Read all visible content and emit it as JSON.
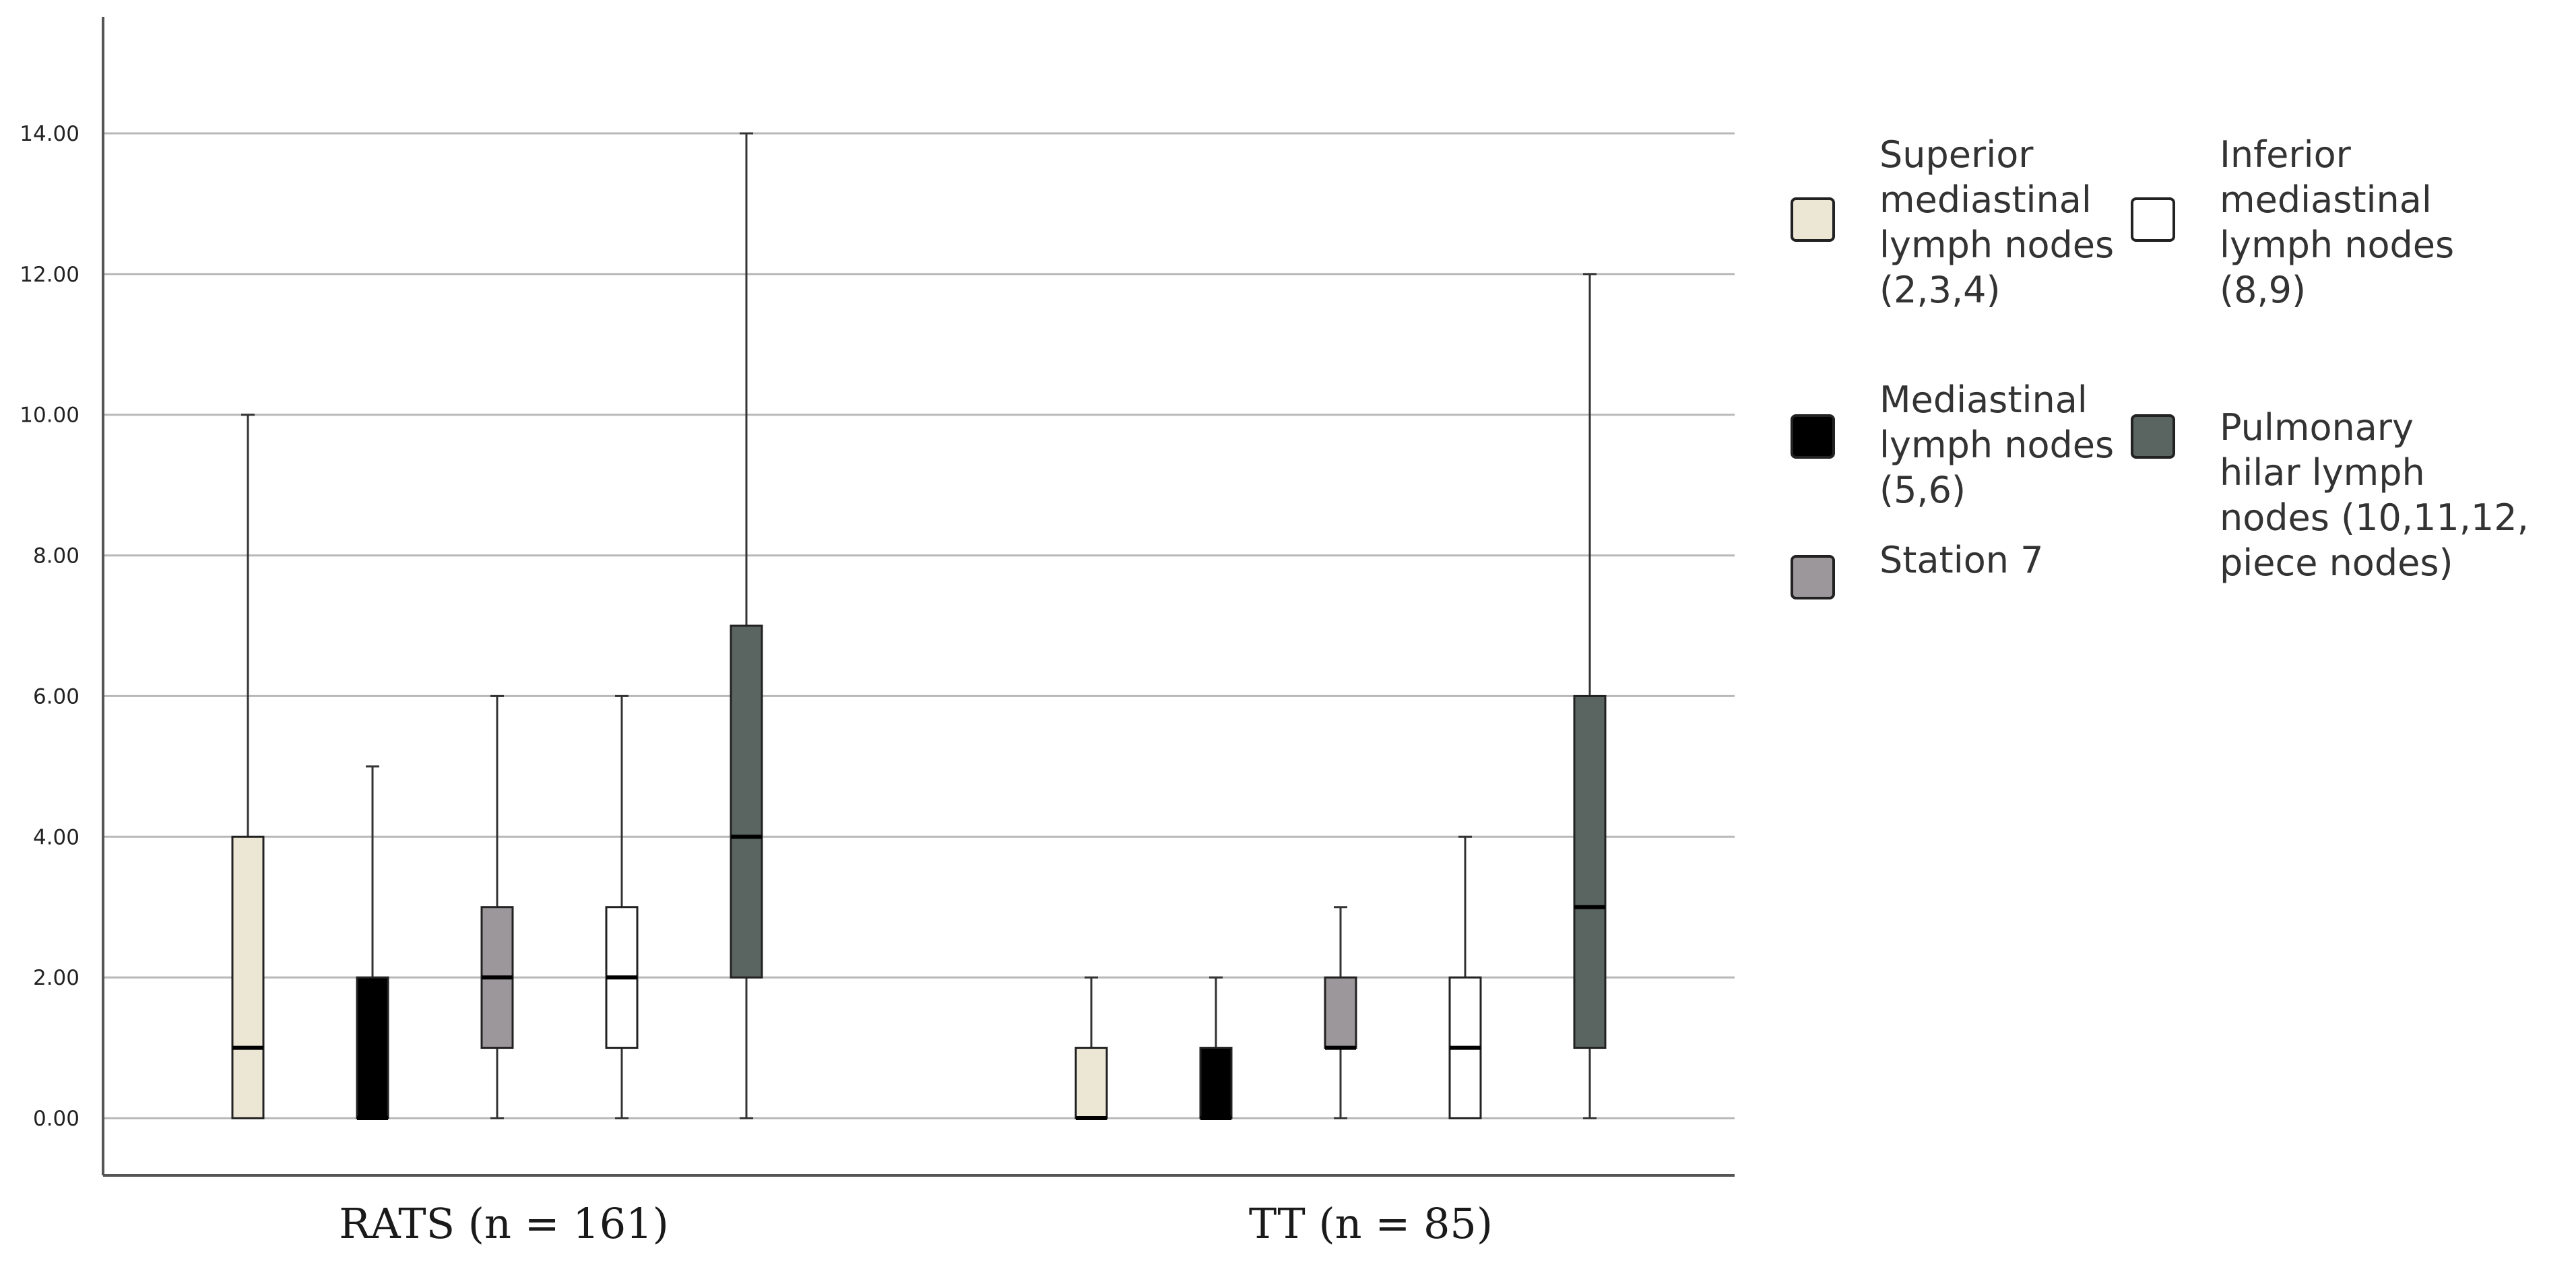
{
  "chart_data": {
    "type": "box",
    "title": "",
    "xlabel": "",
    "ylabel": "",
    "ylim": [
      -0.8,
      15.8
    ],
    "yticks": [
      0,
      2,
      4,
      6,
      8,
      10,
      12,
      14
    ],
    "ytick_labels": [
      "0.00",
      "2.00",
      "4.00",
      "6.00",
      "8.00",
      "10.00",
      "12.00",
      "14.00"
    ],
    "grid": true,
    "legend_position": "right",
    "groups": [
      "RATS (n = 161)",
      "TT (n = 85)"
    ],
    "series": [
      {
        "name": "Superior mediastinal lymph nodes (2,3,4)",
        "legend_lines": [
          "Superior",
          "mediastinal",
          "lymph nodes",
          "(2,3,4)"
        ],
        "color": "#ece7d4",
        "boxes": [
          {
            "min": 0,
            "q1": 0,
            "median": 1,
            "q3": 4,
            "max": 10
          },
          {
            "min": 0,
            "q1": 0,
            "median": 0,
            "q3": 1,
            "max": 2
          }
        ]
      },
      {
        "name": "Mediastinal lymph nodes (5,6)",
        "legend_lines": [
          "Mediastinal",
          "lymph nodes",
          "(5,6)"
        ],
        "color": "#000000",
        "boxes": [
          {
            "min": 0,
            "q1": 0,
            "median": 0,
            "q3": 2,
            "max": 5
          },
          {
            "min": 0,
            "q1": 0,
            "median": 0,
            "q3": 1,
            "max": 2
          }
        ]
      },
      {
        "name": "Station 7",
        "legend_lines": [
          "Station 7"
        ],
        "color": "#9c979b",
        "boxes": [
          {
            "min": 0,
            "q1": 1,
            "median": 2,
            "q3": 3,
            "max": 6
          },
          {
            "min": 0,
            "q1": 1,
            "median": 1,
            "q3": 2,
            "max": 3
          }
        ]
      },
      {
        "name": "Inferior mediastinal lymph nodes (8,9)",
        "legend_lines": [
          "Inferior",
          "mediastinal",
          "lymph nodes",
          "(8,9)"
        ],
        "color": "#ffffff",
        "boxes": [
          {
            "min": 0,
            "q1": 1,
            "median": 2,
            "q3": 3,
            "max": 6
          },
          {
            "min": 0,
            "q1": 0,
            "median": 1,
            "q3": 2,
            "max": 4
          }
        ]
      },
      {
        "name": "Pulmonary hilar lymph nodes (10,11,12, piece nodes)",
        "legend_lines": [
          "Pulmonary",
          "hilar lymph",
          "nodes (10,11,12,",
          "piece nodes)"
        ],
        "color": "#5a6460",
        "boxes": [
          {
            "min": 0,
            "q1": 2,
            "median": 4,
            "q3": 7,
            "max": 14
          },
          {
            "min": 0,
            "q1": 1,
            "median": 3,
            "q3": 6,
            "max": 12
          }
        ]
      }
    ]
  }
}
